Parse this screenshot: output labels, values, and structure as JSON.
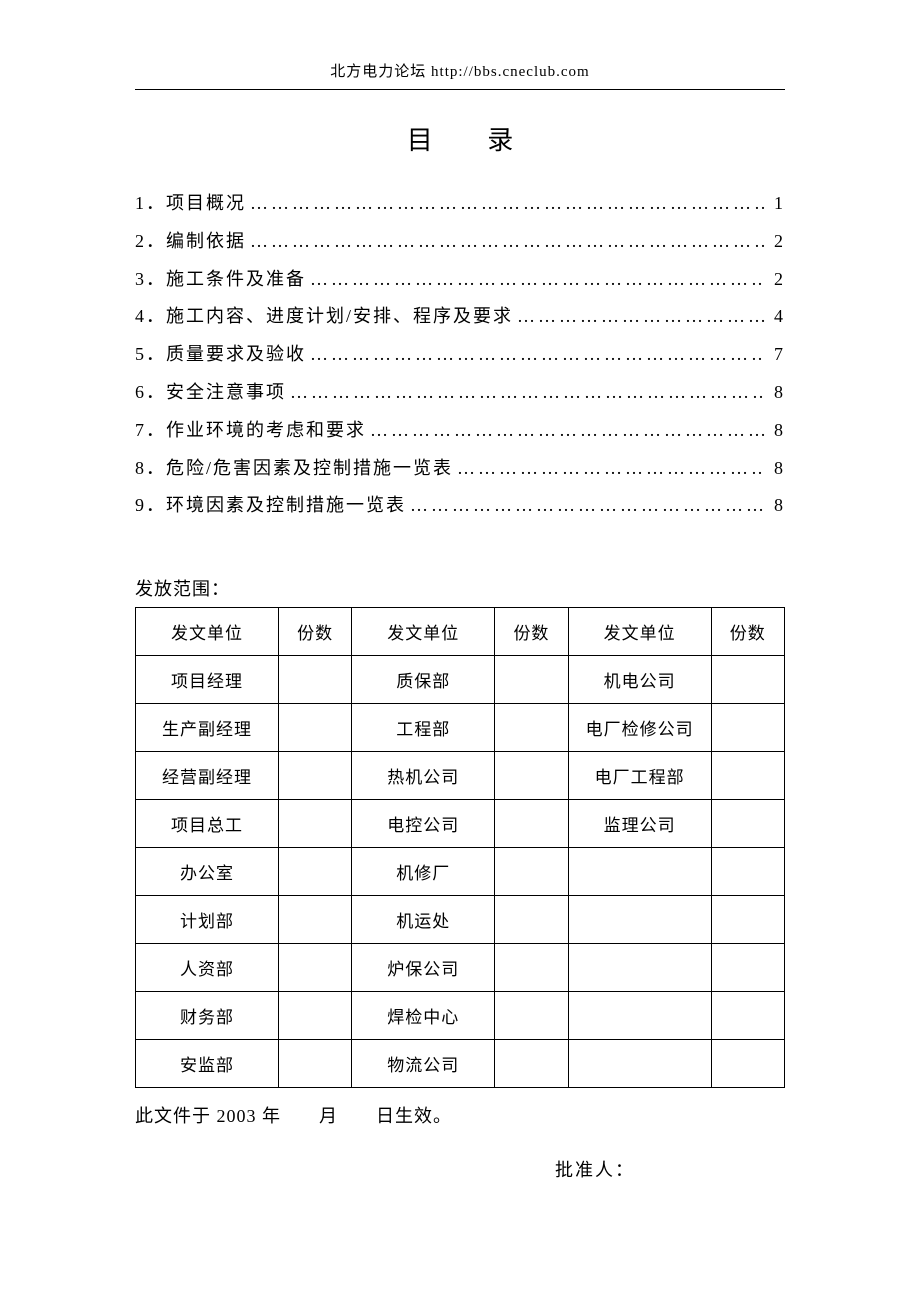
{
  "header": "北方电力论坛  http://bbs.cneclub.com",
  "title": "目 录",
  "toc": [
    {
      "num": "1．",
      "label": "项目概况",
      "page": "1"
    },
    {
      "num": "2．",
      "label": "编制依据",
      "page": "2"
    },
    {
      "num": "3．",
      "label": "施工条件及准备",
      "page": "2"
    },
    {
      "num": "4．",
      "label": "施工内容、进度计划/安排、程序及要求",
      "page": "4"
    },
    {
      "num": "5．",
      "label": "质量要求及验收",
      "page": "7"
    },
    {
      "num": "6．",
      "label": "安全注意事项",
      "page": "8"
    },
    {
      "num": "7．",
      "label": "作业环境的考虑和要求",
      "page": "8"
    },
    {
      "num": "8．",
      "label": "危险/危害因素及控制措施一览表",
      "page": "8"
    },
    {
      "num": "9．",
      "label": "环境因素及控制措施一览表",
      "page": "8"
    }
  ],
  "distribution": {
    "label": "发放范围：",
    "header_unit": "发文单位",
    "header_qty": "份数",
    "rows": [
      [
        "项目经理",
        "",
        "质保部",
        "",
        "机电公司",
        ""
      ],
      [
        "生产副经理",
        "",
        "工程部",
        "",
        "电厂检修公司",
        ""
      ],
      [
        "经营副经理",
        "",
        "热机公司",
        "",
        "电厂工程部",
        ""
      ],
      [
        "项目总工",
        "",
        "电控公司",
        "",
        "监理公司",
        ""
      ],
      [
        "办公室",
        "",
        "机修厂",
        "",
        "",
        ""
      ],
      [
        "计划部",
        "",
        "机运处",
        "",
        "",
        ""
      ],
      [
        "人资部",
        "",
        "炉保公司",
        "",
        "",
        ""
      ],
      [
        "财务部",
        "",
        "焊检中心",
        "",
        "",
        ""
      ],
      [
        "安监部",
        "",
        "物流公司",
        "",
        "",
        ""
      ]
    ]
  },
  "effective_text": "此文件于 2003 年　　月　　日生效。",
  "approver_label": "批准人：",
  "colors": {
    "text": "#000000",
    "background": "#ffffff",
    "border": "#000000"
  }
}
